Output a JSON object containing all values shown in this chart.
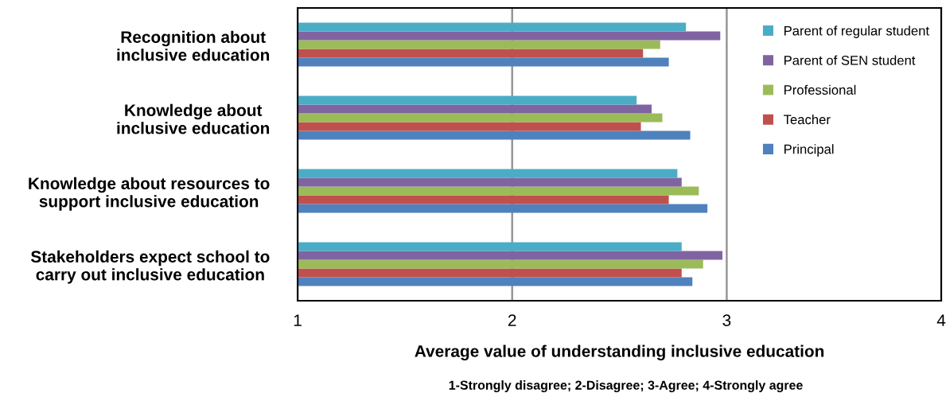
{
  "chart_data": {
    "type": "bar",
    "orientation": "horizontal",
    "categories": [
      "Recognition about\ninclusive education",
      "Knowledge about\ninclusive education",
      "Knowledge about resources to\nsupport inclusive education",
      "Stakeholders expect school to\ncarry out inclusive education"
    ],
    "series": [
      {
        "name": "Principal",
        "color": "#4f81bd",
        "values": [
          2.73,
          2.83,
          2.91,
          2.84
        ]
      },
      {
        "name": "Teacher",
        "color": "#c0504d",
        "values": [
          2.61,
          2.6,
          2.73,
          2.79
        ]
      },
      {
        "name": "Professional",
        "color": "#9bbb59",
        "values": [
          2.69,
          2.7,
          2.87,
          2.89
        ]
      },
      {
        "name": "Parent of SEN student",
        "color": "#8064a2",
        "values": [
          2.97,
          2.65,
          2.79,
          2.98
        ]
      },
      {
        "name": "Parent of regular student",
        "color": "#4bacc6",
        "values": [
          2.81,
          2.58,
          2.77,
          2.79
        ]
      }
    ],
    "xlim": [
      1,
      4
    ],
    "xticks": [
      1,
      2,
      3,
      4
    ],
    "xlabel": "Average value of understanding inclusive education",
    "annotations": [
      "1-Strongly disagree; 2-Disagree; 3-Agree; 4-Strongly agree"
    ],
    "grid": "x",
    "legend": "top right"
  }
}
